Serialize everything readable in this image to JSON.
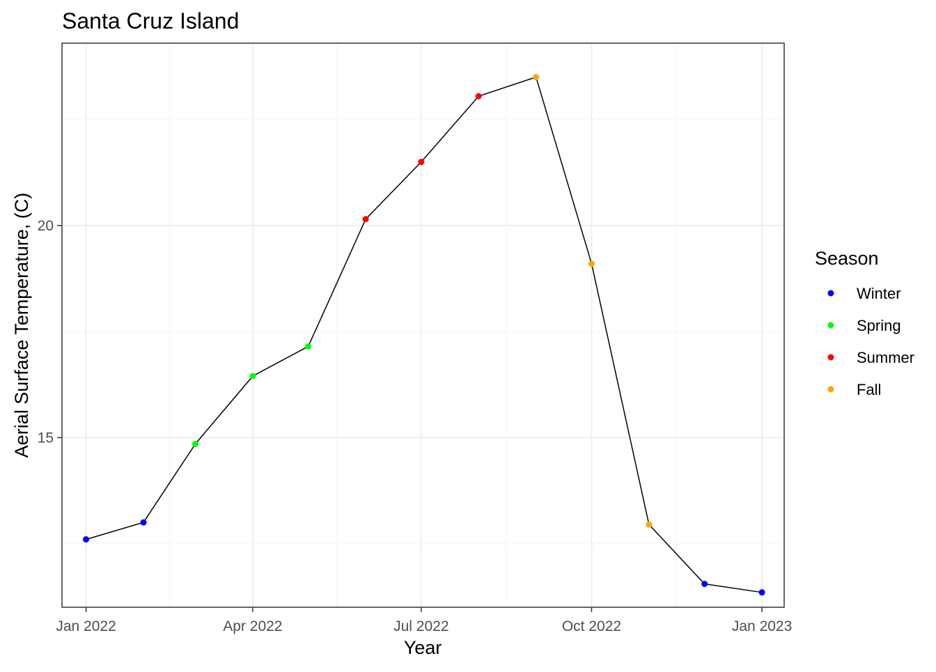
{
  "chart_data": {
    "type": "line",
    "title": "Santa Cruz Island",
    "xlabel": "Year",
    "ylabel": "Aerial Surface Temperature, (C)",
    "xlim": [
      "2021-12-19",
      "2023-01-13"
    ],
    "ylim": [
      11.0,
      24.3
    ],
    "x_ticks": [
      {
        "date": "2022-01-01",
        "label": "Jan 2022"
      },
      {
        "date": "2022-04-01",
        "label": "Apr 2022"
      },
      {
        "date": "2022-07-01",
        "label": "Jul 2022"
      },
      {
        "date": "2022-10-01",
        "label": "Oct 2022"
      },
      {
        "date": "2023-01-01",
        "label": "Jan 2023"
      }
    ],
    "y_ticks": [
      15,
      20
    ],
    "grid": true,
    "legend": {
      "title": "Season",
      "position": "right",
      "entries": [
        {
          "label": "Winter",
          "color": "#0000ff"
        },
        {
          "label": "Spring",
          "color": "#00ff00"
        },
        {
          "label": "Summer",
          "color": "#ff0000"
        },
        {
          "label": "Fall",
          "color": "#ffa500"
        }
      ]
    },
    "line_color": "#000000",
    "points": [
      {
        "date": "2022-01-01",
        "value": 12.6,
        "season": "Winter"
      },
      {
        "date": "2022-02-01",
        "value": 13.0,
        "season": "Winter"
      },
      {
        "date": "2022-03-01",
        "value": 14.85,
        "season": "Spring"
      },
      {
        "date": "2022-04-01",
        "value": 16.45,
        "season": "Spring"
      },
      {
        "date": "2022-05-01",
        "value": 17.15,
        "season": "Spring"
      },
      {
        "date": "2022-06-01",
        "value": 20.15,
        "season": "Summer"
      },
      {
        "date": "2022-07-01",
        "value": 21.5,
        "season": "Summer"
      },
      {
        "date": "2022-08-01",
        "value": 23.05,
        "season": "Summer"
      },
      {
        "date": "2022-09-01",
        "value": 23.5,
        "season": "Fall"
      },
      {
        "date": "2022-10-01",
        "value": 19.1,
        "season": "Fall"
      },
      {
        "date": "2022-11-01",
        "value": 12.95,
        "season": "Fall"
      },
      {
        "date": "2022-12-01",
        "value": 11.55,
        "season": "Winter"
      },
      {
        "date": "2023-01-01",
        "value": 11.35,
        "season": "Winter"
      }
    ]
  }
}
